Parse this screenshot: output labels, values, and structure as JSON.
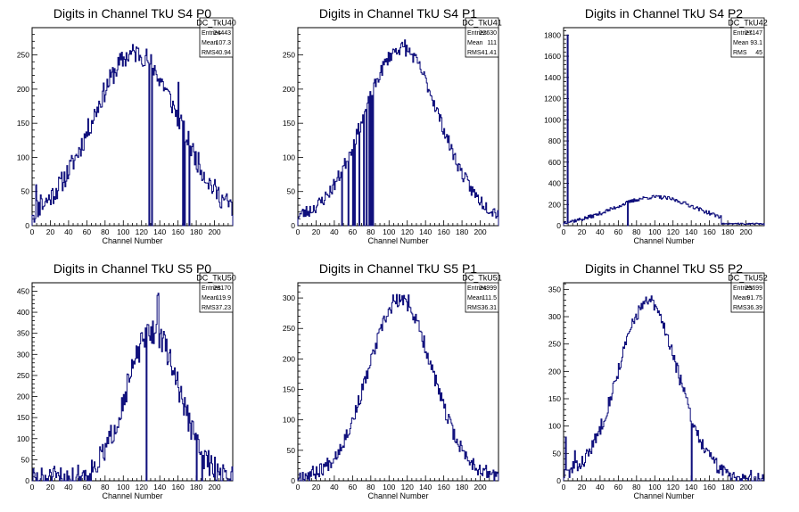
{
  "chart_data": [
    {
      "type": "histogram",
      "title": "Digits in Channel TkU S4 P0",
      "xlabel": "Channel Number",
      "xlim": [
        0,
        220
      ],
      "ylim": [
        0,
        290
      ],
      "xticks": [
        0,
        20,
        40,
        60,
        80,
        100,
        120,
        140,
        160,
        180,
        200
      ],
      "yticks": [
        0,
        50,
        100,
        150,
        200,
        250
      ],
      "stats": {
        "name": "DC_TkU40",
        "rows": [
          [
            "Entries",
            "24443"
          ],
          [
            "Mean",
            "107.3"
          ],
          [
            "RMS",
            "40.94"
          ]
        ]
      },
      "shape": {
        "peak": 245,
        "mean": 113,
        "sigma": 47,
        "base": 8,
        "noise": 16,
        "seed": 11
      },
      "spikes": [
        [
          0,
          15
        ],
        [
          2,
          5
        ],
        [
          4,
          60
        ],
        [
          9,
          45
        ],
        [
          128,
          0
        ],
        [
          131,
          0
        ],
        [
          139,
          205
        ],
        [
          160,
          210
        ],
        [
          165,
          0
        ],
        [
          167,
          0
        ],
        [
          172,
          0
        ]
      ]
    },
    {
      "type": "histogram",
      "title": "Digits in Channel TkU S4 P1",
      "xlabel": "Channel Number",
      "xlim": [
        0,
        220
      ],
      "ylim": [
        0,
        290
      ],
      "xticks": [
        0,
        20,
        40,
        60,
        80,
        100,
        120,
        140,
        160,
        180,
        200
      ],
      "yticks": [
        0,
        50,
        100,
        150,
        200,
        250
      ],
      "stats": {
        "name": "DC_TkU41",
        "rows": [
          [
            "Entries",
            "22630"
          ],
          [
            "Mean",
            "111"
          ],
          [
            "RMS",
            "41.41"
          ]
        ]
      },
      "shape": {
        "peak": 250,
        "mean": 113,
        "sigma": 41,
        "base": 10,
        "noise": 10,
        "seed": 23
      },
      "spikes": [
        [
          48,
          0
        ],
        [
          55,
          0
        ],
        [
          60,
          0
        ],
        [
          62,
          0
        ],
        [
          67,
          0
        ],
        [
          72,
          0
        ],
        [
          75,
          0
        ],
        [
          78,
          0
        ],
        [
          80,
          0
        ],
        [
          82,
          0
        ],
        [
          117,
          272
        ]
      ]
    },
    {
      "type": "histogram",
      "title": "Digits in Channel TkU S4 P2",
      "xlabel": "Channel Number",
      "xlim": [
        0,
        220
      ],
      "ylim": [
        0,
        1870
      ],
      "xticks": [
        0,
        20,
        40,
        60,
        80,
        100,
        120,
        140,
        160,
        180,
        200
      ],
      "yticks": [
        0,
        200,
        400,
        600,
        800,
        1000,
        1200,
        1400,
        1600,
        1800
      ],
      "stats": {
        "name": "DC_TkU42",
        "rows": [
          [
            "Entries",
            "27147"
          ],
          [
            "Mean",
            "93.1"
          ],
          [
            "RMS",
            "45"
          ]
        ]
      },
      "shape": {
        "peak": 260,
        "mean": 100,
        "sigma": 45,
        "base": 10,
        "noise": 18,
        "seed": 37,
        "cutoff": 172,
        "tail": 22
      },
      "spikes": [
        [
          4,
          1800
        ],
        [
          70,
          0
        ]
      ]
    },
    {
      "type": "histogram",
      "title": "Digits in Channel TkU S5 P0",
      "xlabel": "Channel Number",
      "xlim": [
        0,
        220
      ],
      "ylim": [
        0,
        470
      ],
      "xticks": [
        0,
        20,
        40,
        60,
        80,
        100,
        120,
        140,
        160,
        180,
        200
      ],
      "yticks": [
        0,
        50,
        100,
        150,
        200,
        250,
        300,
        350,
        400,
        450
      ],
      "stats": {
        "name": "DC_TkU50",
        "rows": [
          [
            "Entries",
            "28170"
          ],
          [
            "Mean",
            "119.9"
          ],
          [
            "RMS",
            "37.23"
          ]
        ]
      },
      "shape": {
        "peak": 350,
        "mean": 132,
        "sigma": 29,
        "base": 4,
        "noise": 30,
        "seed": 51
      },
      "spikes": [
        [
          125,
          0
        ],
        [
          137,
          440
        ],
        [
          138,
          445
        ],
        [
          180,
          0
        ],
        [
          186,
          0
        ]
      ]
    },
    {
      "type": "histogram",
      "title": "Digits in Channel TkU S5 P1",
      "xlabel": "Channel Number",
      "xlim": [
        0,
        220
      ],
      "ylim": [
        0,
        325
      ],
      "xticks": [
        0,
        20,
        40,
        60,
        80,
        100,
        120,
        140,
        160,
        180,
        200
      ],
      "yticks": [
        0,
        50,
        100,
        150,
        200,
        250,
        300
      ],
      "stats": {
        "name": "DC_TkU51",
        "rows": [
          [
            "Entries",
            "24999"
          ],
          [
            "Mean",
            "111.5"
          ],
          [
            "RMS",
            "36.31"
          ]
        ]
      },
      "shape": {
        "peak": 290,
        "mean": 112,
        "sigma": 35,
        "base": 6,
        "noise": 12,
        "seed": 67
      },
      "spikes": [
        [
          104,
          305
        ],
        [
          121,
          305
        ]
      ]
    },
    {
      "type": "histogram",
      "title": "Digits in Channel TkU S5 P2",
      "xlabel": "Channel Number",
      "xlim": [
        0,
        220
      ],
      "ylim": [
        0,
        362
      ],
      "xticks": [
        0,
        20,
        40,
        60,
        80,
        100,
        120,
        140,
        160,
        180,
        200
      ],
      "yticks": [
        0,
        50,
        100,
        150,
        200,
        250,
        300,
        350
      ],
      "stats": {
        "name": "DC_TkU52",
        "rows": [
          [
            "Entries",
            "25699"
          ],
          [
            "Mean",
            "91.75"
          ],
          [
            "RMS",
            "36.39"
          ]
        ]
      },
      "shape": {
        "peak": 320,
        "mean": 92,
        "sigma": 33,
        "base": 5,
        "noise": 13,
        "seed": 83
      },
      "spikes": [
        [
          2,
          80
        ],
        [
          10,
          35
        ],
        [
          12,
          55
        ],
        [
          96,
          338
        ],
        [
          140,
          0
        ]
      ]
    }
  ]
}
